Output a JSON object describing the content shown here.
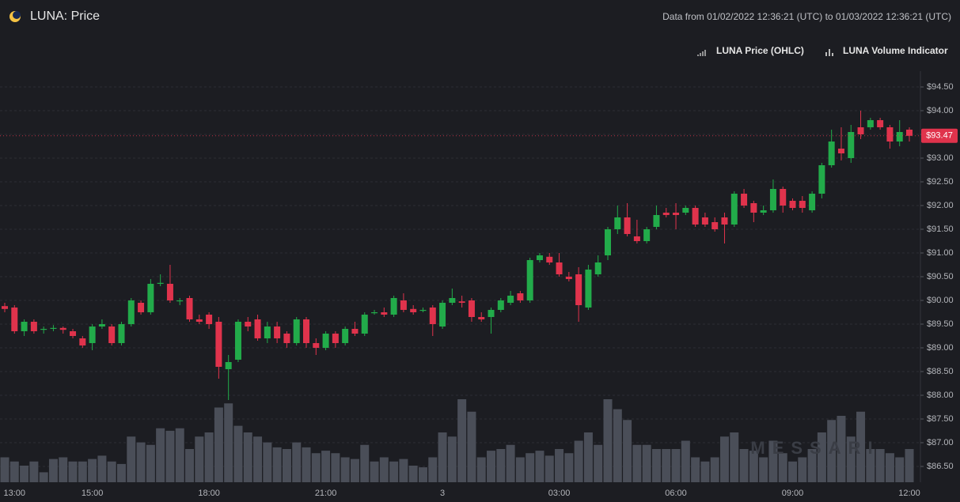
{
  "chart_data": {
    "type": "candlestick",
    "title": "LUNA: Price",
    "subtitle": "Data from 01/02/2022 12:36:21 (UTC) to 01/03/2022 12:36:21 (UTC)",
    "watermark": "MESSARI",
    "up_color": "#22ab4a",
    "down_color": "#e0334c",
    "grid": true,
    "categories": [
      null,
      "13:00",
      null,
      null,
      null,
      null,
      null,
      null,
      null,
      "15:00",
      null,
      null,
      null,
      null,
      null,
      null,
      null,
      null,
      null,
      null,
      null,
      "18:00",
      null,
      null,
      null,
      null,
      null,
      null,
      null,
      null,
      null,
      null,
      null,
      "21:00",
      null,
      null,
      null,
      null,
      null,
      null,
      null,
      null,
      null,
      null,
      null,
      "3",
      null,
      null,
      null,
      null,
      null,
      null,
      null,
      null,
      null,
      null,
      null,
      "03:00",
      null,
      null,
      null,
      null,
      null,
      null,
      null,
      null,
      null,
      null,
      null,
      "06:00",
      null,
      null,
      null,
      null,
      null,
      null,
      null,
      null,
      null,
      null,
      null,
      "09:00",
      null,
      null,
      null,
      null,
      null,
      null,
      null,
      null,
      null,
      null,
      null,
      "12:00"
    ],
    "series": [
      {
        "name": "LUNA Price (OHLC)",
        "open": [
          89.88,
          89.85,
          89.35,
          89.55,
          89.38,
          89.4,
          89.42,
          89.35,
          89.2,
          89.1,
          89.45,
          89.45,
          89.1,
          89.5,
          89.95,
          89.75,
          90.35,
          90.35,
          89.98,
          90.05,
          89.6,
          89.7,
          89.55,
          88.55,
          88.75,
          89.55,
          89.6,
          89.2,
          89.45,
          89.3,
          89.1,
          89.6,
          89.1,
          89.0,
          89.3,
          89.1,
          89.4,
          89.3,
          89.73,
          89.75,
          89.7,
          90.0,
          89.82,
          89.78,
          89.85,
          89.45,
          89.95,
          89.98,
          90.0,
          89.65,
          89.65,
          89.8,
          89.95,
          90.15,
          90.0,
          90.85,
          90.92,
          90.8,
          90.5,
          90.55,
          89.85,
          90.55,
          90.95,
          91.5,
          91.75,
          91.35,
          91.25,
          91.55,
          91.85,
          91.85,
          91.85,
          91.95,
          91.75,
          91.65,
          91.75,
          91.6,
          92.25,
          92.05,
          91.85,
          91.9,
          92.35,
          92.1,
          92.1,
          91.9,
          92.25,
          92.85,
          93.2,
          93.0,
          93.65,
          93.65,
          93.8,
          93.65,
          93.35,
          93.6
        ],
        "high": [
          89.95,
          89.9,
          89.6,
          89.6,
          89.45,
          89.48,
          89.45,
          89.4,
          89.25,
          89.5,
          89.6,
          89.5,
          89.55,
          90.05,
          90.0,
          90.45,
          90.55,
          90.75,
          90.05,
          90.1,
          89.7,
          89.75,
          89.65,
          88.85,
          89.6,
          89.65,
          89.7,
          89.55,
          89.55,
          89.35,
          89.65,
          89.65,
          89.2,
          89.35,
          89.35,
          89.45,
          89.55,
          89.75,
          89.8,
          89.85,
          90.1,
          90.15,
          89.9,
          89.85,
          89.9,
          90.0,
          90.25,
          90.1,
          90.05,
          89.75,
          89.85,
          90.05,
          90.2,
          90.2,
          90.9,
          91.0,
          91.0,
          91.0,
          90.6,
          90.7,
          90.75,
          90.95,
          91.55,
          92.0,
          92.05,
          91.7,
          91.55,
          92.0,
          91.95,
          92.05,
          92.0,
          92.0,
          91.85,
          91.75,
          91.85,
          92.3,
          92.35,
          92.1,
          92.0,
          92.55,
          92.4,
          92.15,
          92.2,
          92.3,
          92.9,
          93.6,
          93.65,
          93.7,
          94.0,
          93.85,
          93.85,
          93.7,
          93.8,
          93.65
        ],
        "low": [
          89.75,
          89.3,
          89.25,
          89.3,
          89.3,
          89.35,
          89.3,
          89.2,
          89.0,
          88.95,
          89.4,
          89.05,
          89.05,
          89.45,
          89.7,
          89.7,
          90.3,
          89.95,
          89.9,
          89.55,
          89.5,
          89.4,
          88.35,
          87.9,
          88.7,
          89.35,
          89.15,
          89.1,
          89.1,
          89.0,
          89.05,
          89.0,
          88.85,
          88.95,
          89.0,
          89.05,
          89.25,
          89.25,
          89.7,
          89.65,
          89.65,
          89.75,
          89.7,
          89.75,
          89.25,
          89.4,
          89.9,
          89.85,
          89.55,
          89.55,
          89.3,
          89.75,
          89.9,
          89.95,
          89.95,
          90.8,
          90.75,
          90.5,
          90.4,
          89.55,
          89.8,
          90.5,
          90.85,
          91.4,
          91.35,
          91.2,
          91.2,
          91.5,
          91.75,
          91.5,
          91.8,
          91.55,
          91.55,
          91.45,
          91.2,
          91.55,
          91.95,
          91.65,
          91.8,
          91.85,
          91.85,
          91.9,
          91.85,
          91.85,
          92.15,
          92.8,
          92.95,
          92.9,
          93.4,
          93.6,
          93.6,
          93.2,
          93.25,
          93.35
        ],
        "close": [
          89.82,
          89.35,
          89.55,
          89.35,
          89.4,
          89.42,
          89.38,
          89.25,
          89.05,
          89.45,
          89.5,
          89.1,
          89.5,
          90.0,
          89.75,
          90.35,
          90.37,
          90.0,
          90.0,
          89.6,
          89.55,
          89.5,
          88.6,
          88.7,
          89.55,
          89.45,
          89.2,
          89.45,
          89.2,
          89.1,
          89.6,
          89.1,
          89.0,
          89.3,
          89.1,
          89.4,
          89.3,
          89.7,
          89.75,
          89.7,
          90.05,
          89.8,
          89.75,
          89.8,
          89.5,
          89.95,
          90.05,
          89.95,
          89.65,
          89.6,
          89.8,
          90.0,
          90.1,
          90.0,
          90.85,
          90.95,
          90.8,
          90.55,
          90.45,
          89.9,
          90.65,
          90.8,
          91.5,
          91.75,
          91.4,
          91.25,
          91.5,
          91.8,
          91.8,
          91.8,
          91.95,
          91.6,
          91.6,
          91.5,
          91.6,
          92.25,
          92.0,
          91.85,
          91.9,
          92.35,
          92.0,
          91.95,
          91.95,
          92.25,
          92.85,
          93.35,
          93.1,
          93.55,
          93.5,
          93.8,
          93.65,
          93.35,
          93.55,
          93.47
        ]
      },
      {
        "name": "LUNA Volume Indicator",
        "color": "#4a4e58",
        "values": [
          30,
          25,
          20,
          25,
          12,
          28,
          30,
          25,
          25,
          28,
          32,
          25,
          22,
          55,
          48,
          45,
          65,
          62,
          65,
          40,
          55,
          60,
          90,
          95,
          68,
          60,
          55,
          48,
          42,
          40,
          48,
          42,
          35,
          38,
          35,
          30,
          28,
          45,
          25,
          30,
          25,
          28,
          20,
          18,
          30,
          60,
          55,
          100,
          85,
          30,
          38,
          40,
          45,
          30,
          35,
          38,
          32,
          40,
          35,
          50,
          60,
          45,
          100,
          88,
          75,
          45,
          45,
          40,
          40,
          40,
          50,
          30,
          25,
          30,
          55,
          60,
          40,
          38,
          30,
          50,
          35,
          25,
          30,
          40,
          60,
          75,
          80,
          55,
          85,
          40,
          40,
          35,
          30,
          40
        ]
      }
    ],
    "last_price": {
      "value": 93.47,
      "label": "$93.47"
    },
    "ylim": [
      86.2,
      94.8
    ],
    "yticks": [
      {
        "value": 86.5,
        "label": "$86.50"
      },
      {
        "value": 87,
        "label": "$87.00"
      },
      {
        "value": 87.5,
        "label": "$87.50"
      },
      {
        "value": 88,
        "label": "$88.00"
      },
      {
        "value": 88.5,
        "label": "$88.50"
      },
      {
        "value": 89,
        "label": "$89.00"
      },
      {
        "value": 89.5,
        "label": "$89.50"
      },
      {
        "value": 90,
        "label": "$90.00"
      },
      {
        "value": 90.5,
        "label": "$90.50"
      },
      {
        "value": 91,
        "label": "$91.00"
      },
      {
        "value": 91.5,
        "label": "$91.50"
      },
      {
        "value": 92,
        "label": "$92.00"
      },
      {
        "value": 92.5,
        "label": "$92.50"
      },
      {
        "value": 93,
        "label": "$93.00"
      },
      {
        "value": 93.5,
        "label": "$93.50"
      },
      {
        "value": 94,
        "label": "$94.00"
      },
      {
        "value": 94.5,
        "label": "$94.50"
      }
    ]
  }
}
